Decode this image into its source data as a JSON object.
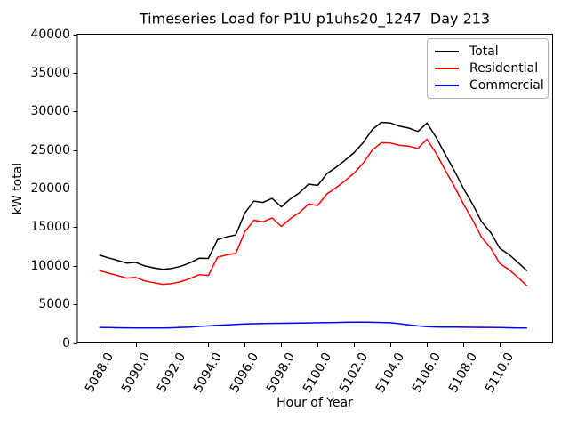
{
  "chart_data": {
    "type": "line",
    "title": "Timeseries Load for P1U p1uhs20_1247  Day 213",
    "xlabel": "Hour of Year",
    "ylabel": "kW total",
    "xlim": [
      5086.8,
      5112.9
    ],
    "ylim": [
      0,
      40000
    ],
    "grid": false,
    "legend_position": "upper right",
    "x_tick_rotation_deg": 60,
    "x_ticks": [
      5088,
      5090,
      5092,
      5094,
      5096,
      5098,
      5100,
      5102,
      5104,
      5106,
      5108,
      5110
    ],
    "x_tick_labels": [
      "5088.0",
      "5090.0",
      "5092.0",
      "5094.0",
      "5096.0",
      "5098.0",
      "5100.0",
      "5102.0",
      "5104.0",
      "5106.0",
      "5108.0",
      "5110.0"
    ],
    "y_ticks": [
      0,
      5000,
      10000,
      15000,
      20000,
      25000,
      30000,
      35000,
      40000
    ],
    "y_tick_labels": [
      "0",
      "5000",
      "10000",
      "15000",
      "20000",
      "25000",
      "30000",
      "35000",
      "40000"
    ],
    "x": [
      5088.0,
      5088.5,
      5089.0,
      5089.5,
      5090.0,
      5090.5,
      5091.0,
      5091.5,
      5092.0,
      5092.5,
      5093.0,
      5093.5,
      5094.0,
      5094.5,
      5095.0,
      5095.5,
      5096.0,
      5096.5,
      5097.0,
      5097.5,
      5098.0,
      5098.5,
      5099.0,
      5099.5,
      5100.0,
      5100.5,
      5101.0,
      5101.5,
      5102.0,
      5102.5,
      5103.0,
      5103.5,
      5104.0,
      5104.5,
      5105.0,
      5105.5,
      5106.0,
      5106.5,
      5107.0,
      5107.5,
      5108.0,
      5108.5,
      5109.0,
      5109.5,
      5110.0,
      5110.5,
      5111.0,
      5111.5
    ],
    "series": [
      {
        "name": "Total",
        "color": "#000000",
        "values": [
          11400,
          11030,
          10710,
          10350,
          10440,
          9980,
          9730,
          9540,
          9660,
          9950,
          10400,
          10980,
          10950,
          13380,
          13740,
          14000,
          16840,
          18380,
          18200,
          18720,
          17640,
          18650,
          19460,
          20580,
          20400,
          21920,
          22740,
          23660,
          24670,
          25970,
          27660,
          28590,
          28500,
          28080,
          27840,
          27400,
          28500,
          26660,
          24450,
          22340,
          20030,
          18020,
          15710,
          14300,
          12280,
          11460,
          10440,
          9320
        ]
      },
      {
        "name": "Residential",
        "color": "#ff0000",
        "values": [
          9400,
          9050,
          8750,
          8400,
          8500,
          8050,
          7800,
          7600,
          7700,
          7950,
          8350,
          8850,
          8750,
          11100,
          11400,
          11600,
          14400,
          15900,
          15700,
          16200,
          15100,
          16100,
          16900,
          18000,
          17800,
          19300,
          20100,
          21000,
          22000,
          23300,
          25000,
          25950,
          25900,
          25600,
          25500,
          25200,
          26400,
          24600,
          22400,
          20300,
          18000,
          16000,
          13700,
          12300,
          10300,
          9500,
          8500,
          7400
        ]
      },
      {
        "name": "Commercial",
        "color": "#0000ff",
        "values": [
          2000,
          1980,
          1960,
          1950,
          1940,
          1930,
          1930,
          1940,
          1960,
          2000,
          2050,
          2130,
          2200,
          2280,
          2340,
          2400,
          2440,
          2480,
          2500,
          2520,
          2540,
          2550,
          2560,
          2580,
          2600,
          2620,
          2640,
          2660,
          2670,
          2670,
          2660,
          2640,
          2600,
          2480,
          2340,
          2200,
          2100,
          2060,
          2050,
          2040,
          2030,
          2020,
          2010,
          2000,
          1980,
          1960,
          1940,
          1920
        ]
      }
    ]
  }
}
